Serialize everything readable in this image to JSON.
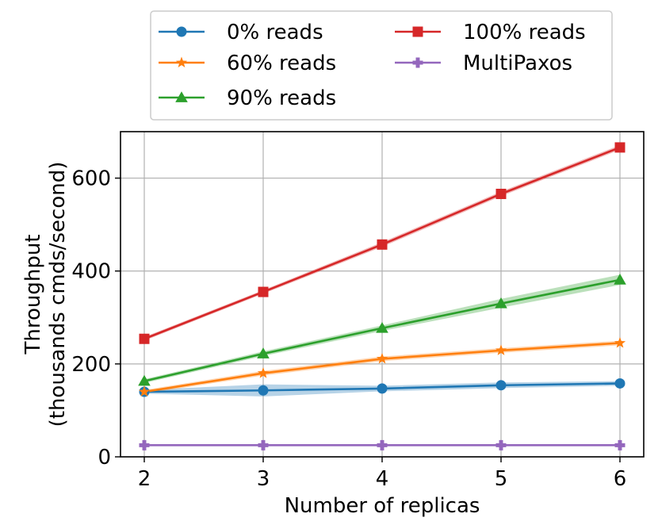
{
  "chart_data": {
    "type": "line",
    "x": [
      2,
      3,
      4,
      5,
      6
    ],
    "xlabel": "Number of replicas",
    "ylabel": "Throughput\n(thousands cmds/second)",
    "ylabel_lines": [
      "Throughput",
      "(thousands cmds/second)"
    ],
    "xlim": [
      1.8,
      6.2
    ],
    "ylim": [
      0,
      700
    ],
    "xticks": [
      "2",
      "3",
      "4",
      "5",
      "6"
    ],
    "yticks": [
      "0",
      "200",
      "400",
      "600"
    ],
    "ytick_values": [
      0,
      200,
      400,
      600
    ],
    "grid": true,
    "legend_position": "top-center, outside plot area, 2 columns",
    "series": [
      {
        "name": "0% reads",
        "color": "#1f77b4",
        "marker": "circle",
        "values": [
          140,
          143,
          147,
          154,
          158
        ],
        "lower": [
          136,
          130,
          141,
          148,
          153
        ],
        "upper": [
          144,
          156,
          153,
          160,
          163
        ]
      },
      {
        "name": "60% reads",
        "color": "#ff7f0e",
        "marker": "star",
        "values": [
          140,
          180,
          211,
          229,
          245
        ],
        "lower": [
          136,
          175,
          206,
          224,
          240
        ],
        "upper": [
          144,
          185,
          216,
          234,
          250
        ]
      },
      {
        "name": "90% reads",
        "color": "#2ca02c",
        "marker": "triangle",
        "values": [
          163,
          222,
          277,
          330,
          381
        ],
        "lower": [
          159,
          217,
          271,
          321,
          370
        ],
        "upper": [
          167,
          227,
          283,
          340,
          392
        ]
      },
      {
        "name": "100% reads",
        "color": "#d62728",
        "marker": "square",
        "values": [
          254,
          355,
          457,
          566,
          666
        ],
        "lower": [
          250,
          351,
          452,
          561,
          661
        ],
        "upper": [
          258,
          359,
          462,
          571,
          671
        ]
      },
      {
        "name": "MultiPaxos",
        "color": "#9467bd",
        "marker": "plus",
        "values": [
          25,
          25,
          25,
          25,
          25
        ],
        "lower": [
          24,
          24,
          24,
          24,
          24
        ],
        "upper": [
          26,
          26,
          26,
          26,
          26
        ]
      }
    ]
  }
}
